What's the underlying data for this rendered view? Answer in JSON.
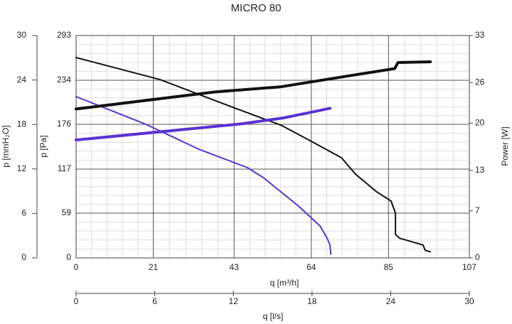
{
  "chart_data": {
    "type": "line",
    "title": "MICRO 80",
    "xlabel": "q [m³/h]",
    "xlim": [
      0,
      107
    ],
    "xticks": [
      0,
      21,
      43,
      64,
      85,
      107
    ],
    "x2label": "q [l/s]",
    "x2lim": [
      0,
      30
    ],
    "x2ticks": [
      0,
      6,
      12,
      18,
      24,
      30
    ],
    "ylabel": "p [Pa]",
    "ylim": [
      0,
      293
    ],
    "yticks": [
      0,
      59,
      117,
      176,
      234,
      293
    ],
    "y3label": "p [mmH₂O]",
    "y3lim": [
      0,
      30
    ],
    "y3ticks": [
      0,
      6,
      12,
      18,
      24,
      30
    ],
    "y2label": "Power [W]",
    "y2lim": [
      0,
      33
    ],
    "y2ticks": [
      0,
      7,
      13,
      20,
      26,
      33
    ],
    "grid": true,
    "series": [
      {
        "color": "#111111",
        "axis": "y",
        "x": [
          0,
          22.8,
          43.1,
          55.7,
          64.4,
          72.2,
          76.0,
          81.8,
          85.7,
          86.9,
          86.9,
          88.0,
          94.4,
          95.0,
          96.4
        ],
        "values": [
          264,
          235,
          197.6,
          175,
          152.6,
          132,
          110.5,
          87,
          75,
          59,
          31,
          26,
          17,
          10,
          8
        ]
      },
      {
        "color": "#5a32d2",
        "axis": "y",
        "x": [
          0,
          19,
          33.5,
          46.6,
          50.9,
          60.6,
          66.4,
          68.3,
          69.1,
          69.3
        ],
        "values": [
          212.5,
          176,
          143,
          119,
          106,
          68,
          42,
          26,
          17,
          5
        ]
      },
      {
        "color": "#111111",
        "axis": "y2",
        "x": [
          0,
          37.3,
          55.8,
          75.2,
          86.7,
          87.6,
          96.4
        ],
        "values": [
          22.1,
          24.6,
          25.4,
          27.1,
          28.1,
          29.0,
          29.1
        ]
      },
      {
        "color": "#5a32d2",
        "axis": "y2",
        "x": [
          0,
          45.1,
          56.7,
          69.1
        ],
        "values": [
          17.5,
          19.9,
          20.8,
          22.2
        ]
      }
    ]
  }
}
